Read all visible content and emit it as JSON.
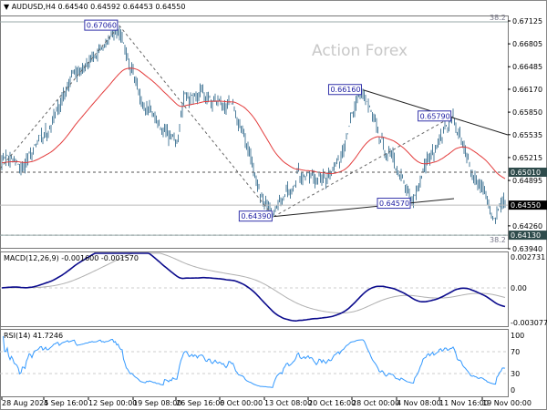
{
  "header": {
    "symbol": "AUDUSD,H4",
    "ohlc": "0.64540 0.64592 0.64453 0.64550"
  },
  "watermark": "Action Forex",
  "colors": {
    "bars": "#4f7f9c",
    "ma": "#e33c3c",
    "macd": "#0a0a8c",
    "signal": "#b0b0b0",
    "rsi": "#3399ff",
    "label_bg": "#2e4b4b"
  },
  "chart_data": [
    {
      "type": "ohlc",
      "title": "AUDUSD,H4",
      "ylim": [
        0.6394,
        0.67125
      ],
      "y_ticks": [
        "0.67125",
        "0.66805",
        "0.66485",
        "0.66170",
        "0.65850",
        "0.65535",
        "0.65215",
        "0.64895",
        "0.64260",
        "0.63940"
      ],
      "x_ticks": [
        "28 Aug 2025",
        "4 Sep 16:00",
        "12 Sep 00:00",
        "19 Sep 08:00",
        "26 Sep 16:00",
        "6 Oct 00:00",
        "13 Oct 08:00",
        "20 Oct 16:00",
        "28 Oct 00:00",
        "4 Nov 08:00",
        "11 Nov 16:00",
        "19 Nov 00:00"
      ],
      "close_waypoints": [
        [
          "2025-08-28",
          0.6525
        ],
        [
          "2025-09-01",
          0.6505
        ],
        [
          "2025-09-05",
          0.6575
        ],
        [
          "2025-09-09",
          0.6635
        ],
        [
          "2025-09-12",
          0.666
        ],
        [
          "2025-09-17",
          0.6706
        ],
        [
          "2025-09-19",
          0.662
        ],
        [
          "2025-09-24",
          0.6565
        ],
        [
          "2025-09-26",
          0.654
        ],
        [
          "2025-09-29",
          0.661
        ],
        [
          "2025-10-03",
          0.66
        ],
        [
          "2025-10-07",
          0.659
        ],
        [
          "2025-10-09",
          0.653
        ],
        [
          "2025-10-10",
          0.648
        ],
        [
          "2025-10-14",
          0.6439
        ],
        [
          "2025-10-17",
          0.65
        ],
        [
          "2025-10-22",
          0.649
        ],
        [
          "2025-10-24",
          0.6515
        ],
        [
          "2025-10-27",
          0.656
        ],
        [
          "2025-10-29",
          0.6616
        ],
        [
          "2025-10-31",
          0.6545
        ],
        [
          "2025-11-04",
          0.651
        ],
        [
          "2025-11-06",
          0.6457
        ],
        [
          "2025-11-10",
          0.652
        ],
        [
          "2025-11-13",
          0.6579
        ],
        [
          "2025-11-17",
          0.651
        ],
        [
          "2025-11-19",
          0.647
        ],
        [
          "2025-11-20",
          0.643
        ],
        [
          "2025-11-21",
          0.6455
        ]
      ],
      "price_labels": [
        {
          "text": "0.67060",
          "price": 0.6706,
          "date": "2025-09-17"
        },
        {
          "text": "0.66160",
          "price": 0.6616,
          "date": "2025-10-29"
        },
        {
          "text": "0.65790",
          "price": 0.6579,
          "date": "2025-11-13"
        },
        {
          "text": "0.64390",
          "price": 0.6439,
          "date": "2025-10-14"
        },
        {
          "text": "0.64570",
          "price": 0.6457,
          "date": "2025-11-06"
        }
      ],
      "levels": [
        {
          "price": 0.6501,
          "label": "0.65010",
          "style": "dashed"
        },
        {
          "price": 0.6413,
          "label": "0.64130",
          "style": "dashed"
        },
        {
          "price": 0.6455,
          "label": "0.64550",
          "style": "current"
        }
      ],
      "fib": [
        {
          "label": "38.2",
          "price": 0.67125
        },
        {
          "label": "38.2",
          "price": 0.6403
        }
      ],
      "moving_average": "red"
    },
    {
      "type": "line",
      "title": "MACD(12,26,9) -0.001600 -0.001570",
      "y_ticks": [
        "0.002731",
        "0.00",
        "-0.003077"
      ],
      "ylim": [
        -0.003077,
        0.002731
      ]
    },
    {
      "type": "line",
      "title": "RSI(14) 41.7246",
      "y_ticks": [
        "100",
        "70",
        "30",
        "0"
      ],
      "ylim": [
        0,
        100
      ],
      "levels": [
        70,
        30
      ]
    }
  ]
}
